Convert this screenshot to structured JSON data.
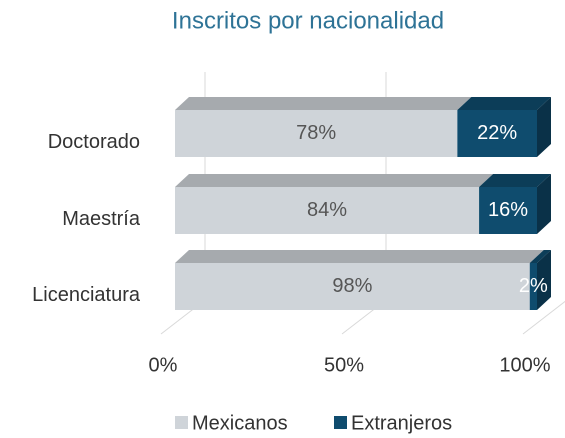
{
  "chart_data": {
    "type": "bar",
    "orientation": "horizontal",
    "stacked": true,
    "title": "Inscritos por nacionalidad",
    "categories": [
      "Doctorado",
      "Maestría",
      "Licenciatura"
    ],
    "series": [
      {
        "name": "Mexicanos",
        "color": "#cfd4d9",
        "values": [
          78,
          84,
          98
        ],
        "value_labels": [
          "78%",
          "84%",
          "98%"
        ]
      },
      {
        "name": "Extranjeros",
        "color": "#0f4c6e",
        "values": [
          22,
          16,
          2
        ],
        "value_labels": [
          "22%",
          "16%",
          "2%"
        ]
      }
    ],
    "xlim": [
      0,
      100
    ],
    "xticks": [
      {
        "value": 0,
        "label": "0%"
      },
      {
        "value": 50,
        "label": "50%"
      },
      {
        "value": 100,
        "label": "100%"
      }
    ],
    "grid": true,
    "legend": "bottom"
  }
}
